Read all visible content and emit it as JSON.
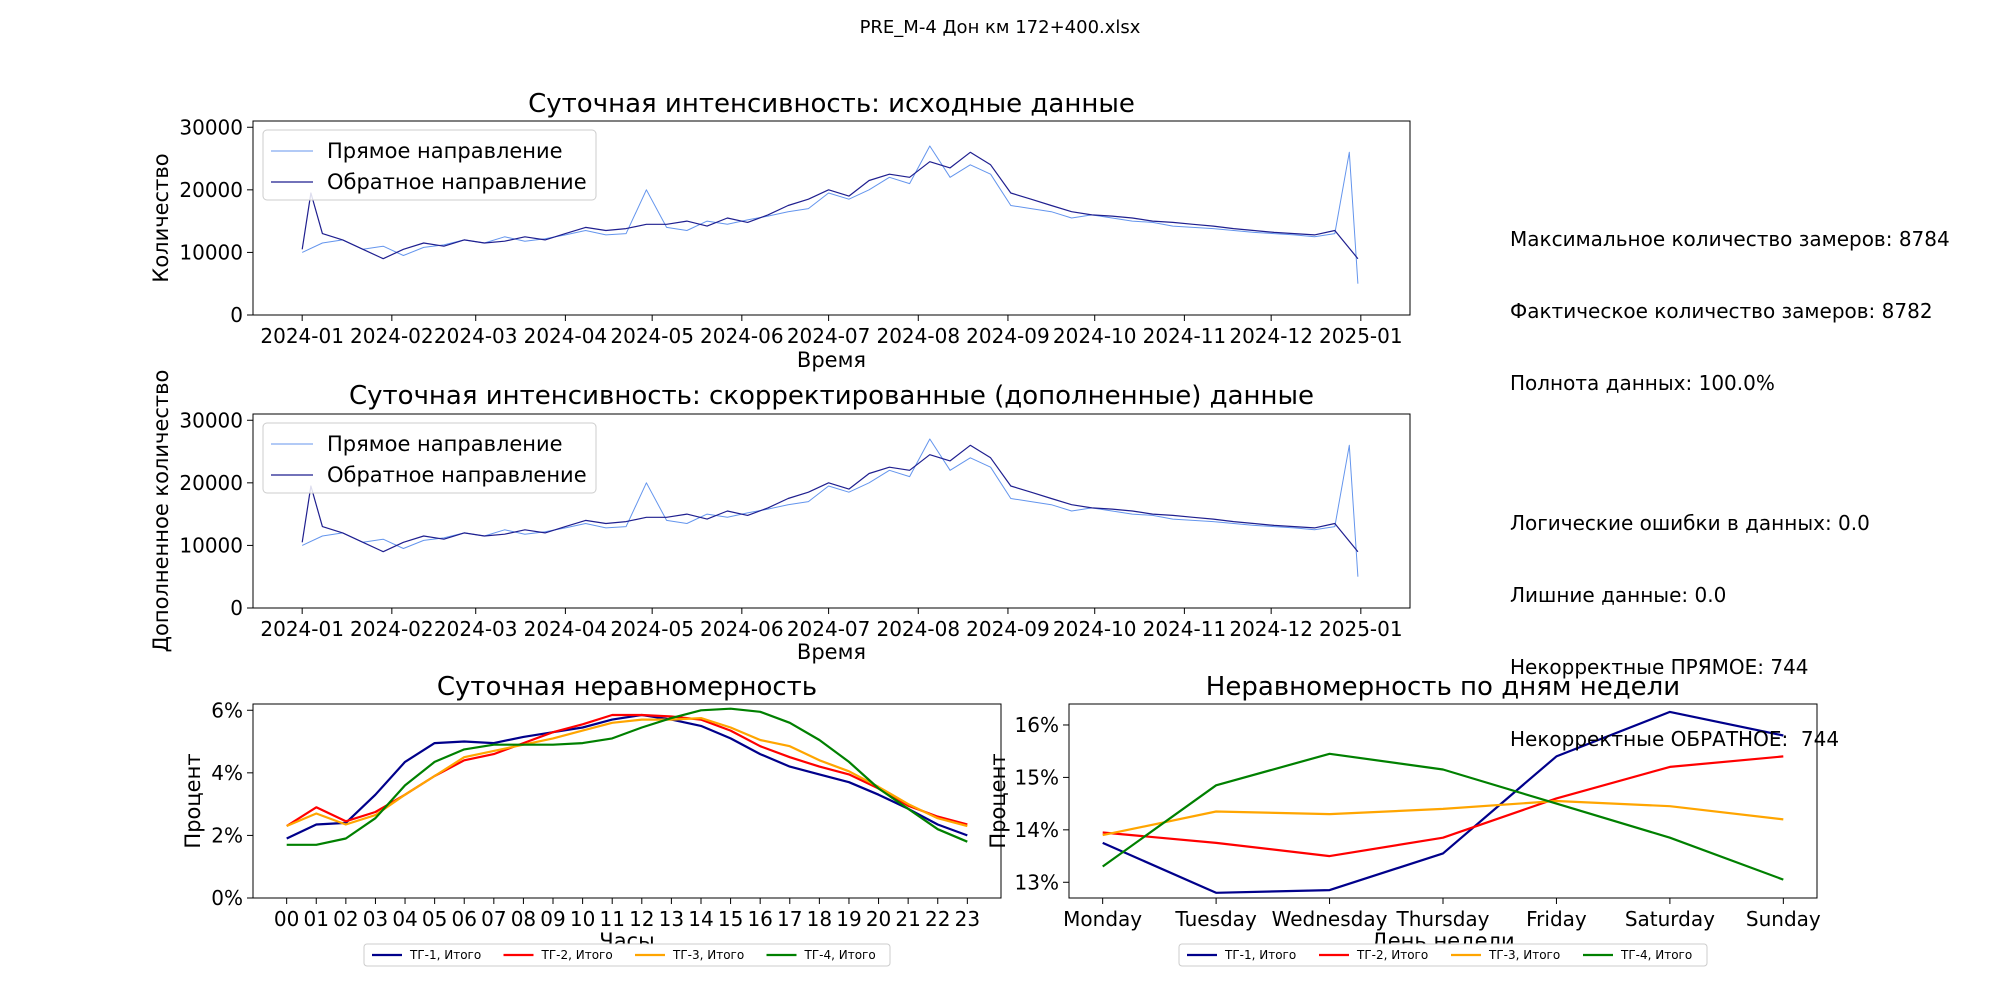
{
  "suptitle": "PRE_M-4 Дон км  172+400.xlsx",
  "stats": {
    "max_measurements": "Максимальное количество замеров: 8784",
    "actual_measurements": "Фактическое количество замеров: 8782",
    "completeness": "Полнота данных: 100.0%",
    "logical_errors": "Логические ошибки в данных: 0.0",
    "extra_data": "Лишние данные: 0.0",
    "incorrect_forward": "Некорректные ПРЯМОЕ: 744",
    "incorrect_backward": "Некорректные ОБРАТНОЕ:  744"
  },
  "chart_data": [
    {
      "type": "line",
      "title": "Суточная интенсивность: исходные данные",
      "xlabel": "Время",
      "ylabel": "Количество",
      "ylim": [
        0,
        31000
      ],
      "yticks": [
        "0",
        "10000",
        "20000",
        "30000"
      ],
      "xticks": [
        "2024-01",
        "2024-02",
        "2024-03",
        "2024-04",
        "2024-05",
        "2024-06",
        "2024-07",
        "2024-08",
        "2024-09",
        "2024-10",
        "2024-11",
        "2024-12",
        "2025-01"
      ],
      "legend_position": "upper-left",
      "series": [
        {
          "name": "Прямое направление",
          "color": "#6495ed",
          "x_dates": [
            "2024-01-01",
            "2024-01-08",
            "2024-01-15",
            "2024-01-22",
            "2024-01-29",
            "2024-02-05",
            "2024-02-12",
            "2024-02-19",
            "2024-02-26",
            "2024-03-04",
            "2024-03-11",
            "2024-03-18",
            "2024-03-25",
            "2024-04-01",
            "2024-04-08",
            "2024-04-15",
            "2024-04-22",
            "2024-04-29",
            "2024-05-06",
            "2024-05-13",
            "2024-05-20",
            "2024-05-27",
            "2024-06-03",
            "2024-06-10",
            "2024-06-17",
            "2024-06-24",
            "2024-07-01",
            "2024-07-08",
            "2024-07-15",
            "2024-07-22",
            "2024-07-29",
            "2024-08-05",
            "2024-08-12",
            "2024-08-19",
            "2024-08-26",
            "2024-09-02",
            "2024-09-09",
            "2024-09-16",
            "2024-09-23",
            "2024-09-30",
            "2024-10-07",
            "2024-10-14",
            "2024-10-21",
            "2024-10-28",
            "2024-11-04",
            "2024-11-11",
            "2024-11-18",
            "2024-11-25",
            "2024-12-02",
            "2024-12-09",
            "2024-12-16",
            "2024-12-23",
            "2024-12-28",
            "2024-12-31"
          ],
          "values": [
            10000,
            11500,
            12000,
            10500,
            11000,
            9500,
            10800,
            11200,
            12000,
            11500,
            12500,
            11800,
            12200,
            12800,
            13500,
            12800,
            13000,
            20000,
            14000,
            13500,
            15000,
            14500,
            15200,
            15800,
            16500,
            17000,
            19500,
            18500,
            20000,
            22000,
            21000,
            27000,
            22000,
            24000,
            22500,
            17500,
            17000,
            16500,
            15500,
            16000,
            15500,
            15000,
            14800,
            14200,
            14000,
            13800,
            13500,
            13200,
            13000,
            12800,
            12500,
            13000,
            26000,
            5000
          ]
        },
        {
          "name": "Обратное направление",
          "color": "#1f1f8f",
          "x_dates": [
            "2024-01-01",
            "2024-01-04",
            "2024-01-08",
            "2024-01-15",
            "2024-01-22",
            "2024-01-29",
            "2024-02-05",
            "2024-02-12",
            "2024-02-19",
            "2024-02-26",
            "2024-03-04",
            "2024-03-11",
            "2024-03-18",
            "2024-03-25",
            "2024-04-01",
            "2024-04-08",
            "2024-04-15",
            "2024-04-22",
            "2024-04-29",
            "2024-05-06",
            "2024-05-13",
            "2024-05-20",
            "2024-05-27",
            "2024-06-03",
            "2024-06-10",
            "2024-06-17",
            "2024-06-24",
            "2024-07-01",
            "2024-07-08",
            "2024-07-15",
            "2024-07-22",
            "2024-07-29",
            "2024-08-05",
            "2024-08-12",
            "2024-08-19",
            "2024-08-26",
            "2024-09-02",
            "2024-09-09",
            "2024-09-16",
            "2024-09-23",
            "2024-09-30",
            "2024-10-07",
            "2024-10-14",
            "2024-10-21",
            "2024-10-28",
            "2024-11-04",
            "2024-11-11",
            "2024-11-18",
            "2024-11-25",
            "2024-12-02",
            "2024-12-09",
            "2024-12-16",
            "2024-12-23",
            "2024-12-31"
          ],
          "values": [
            10500,
            19500,
            13000,
            12000,
            10500,
            9000,
            10500,
            11500,
            11000,
            12000,
            11500,
            11800,
            12500,
            12000,
            13000,
            14000,
            13500,
            13800,
            14500,
            14500,
            15000,
            14200,
            15500,
            14800,
            16000,
            17500,
            18500,
            20000,
            19000,
            21500,
            22500,
            22000,
            24500,
            23500,
            26000,
            24000,
            19500,
            18500,
            17500,
            16500,
            16000,
            15800,
            15500,
            15000,
            14800,
            14500,
            14200,
            13800,
            13500,
            13200,
            13000,
            12800,
            13500,
            9000
          ]
        }
      ]
    },
    {
      "type": "line",
      "title": "Суточная интенсивность: скорректированные (дополненные) данные",
      "xlabel": "Время",
      "ylabel": "Дополненное количество",
      "ylim": [
        0,
        31000
      ],
      "yticks": [
        "0",
        "10000",
        "20000",
        "30000"
      ],
      "xticks": [
        "2024-01",
        "2024-02",
        "2024-03",
        "2024-04",
        "2024-05",
        "2024-06",
        "2024-07",
        "2024-08",
        "2024-09",
        "2024-10",
        "2024-11",
        "2024-12",
        "2025-01"
      ],
      "legend_position": "upper-left",
      "series": [
        {
          "name": "Прямое направление",
          "color": "#6495ed",
          "x_dates": [
            "2024-01-01",
            "2024-01-08",
            "2024-01-15",
            "2024-01-22",
            "2024-01-29",
            "2024-02-05",
            "2024-02-12",
            "2024-02-19",
            "2024-02-26",
            "2024-03-04",
            "2024-03-11",
            "2024-03-18",
            "2024-03-25",
            "2024-04-01",
            "2024-04-08",
            "2024-04-15",
            "2024-04-22",
            "2024-04-29",
            "2024-05-06",
            "2024-05-13",
            "2024-05-20",
            "2024-05-27",
            "2024-06-03",
            "2024-06-10",
            "2024-06-17",
            "2024-06-24",
            "2024-07-01",
            "2024-07-08",
            "2024-07-15",
            "2024-07-22",
            "2024-07-29",
            "2024-08-05",
            "2024-08-12",
            "2024-08-19",
            "2024-08-26",
            "2024-09-02",
            "2024-09-09",
            "2024-09-16",
            "2024-09-23",
            "2024-09-30",
            "2024-10-07",
            "2024-10-14",
            "2024-10-21",
            "2024-10-28",
            "2024-11-04",
            "2024-11-11",
            "2024-11-18",
            "2024-11-25",
            "2024-12-02",
            "2024-12-09",
            "2024-12-16",
            "2024-12-23",
            "2024-12-28",
            "2024-12-31"
          ],
          "values": [
            10000,
            11500,
            12000,
            10500,
            11000,
            9500,
            10800,
            11200,
            12000,
            11500,
            12500,
            11800,
            12200,
            12800,
            13500,
            12800,
            13000,
            20000,
            14000,
            13500,
            15000,
            14500,
            15200,
            15800,
            16500,
            17000,
            19500,
            18500,
            20000,
            22000,
            21000,
            27000,
            22000,
            24000,
            22500,
            17500,
            17000,
            16500,
            15500,
            16000,
            15500,
            15000,
            14800,
            14200,
            14000,
            13800,
            13500,
            13200,
            13000,
            12800,
            12500,
            13000,
            26000,
            5000
          ]
        },
        {
          "name": "Обратное направление",
          "color": "#1f1f8f",
          "x_dates": [
            "2024-01-01",
            "2024-01-04",
            "2024-01-08",
            "2024-01-15",
            "2024-01-22",
            "2024-01-29",
            "2024-02-05",
            "2024-02-12",
            "2024-02-19",
            "2024-02-26",
            "2024-03-04",
            "2024-03-11",
            "2024-03-18",
            "2024-03-25",
            "2024-04-01",
            "2024-04-08",
            "2024-04-15",
            "2024-04-22",
            "2024-04-29",
            "2024-05-06",
            "2024-05-13",
            "2024-05-20",
            "2024-05-27",
            "2024-06-03",
            "2024-06-10",
            "2024-06-17",
            "2024-06-24",
            "2024-07-01",
            "2024-07-08",
            "2024-07-15",
            "2024-07-22",
            "2024-07-29",
            "2024-08-05",
            "2024-08-12",
            "2024-08-19",
            "2024-08-26",
            "2024-09-02",
            "2024-09-09",
            "2024-09-16",
            "2024-09-23",
            "2024-09-30",
            "2024-10-07",
            "2024-10-14",
            "2024-10-21",
            "2024-10-28",
            "2024-11-04",
            "2024-11-11",
            "2024-11-18",
            "2024-11-25",
            "2024-12-02",
            "2024-12-09",
            "2024-12-16",
            "2024-12-23",
            "2024-12-31"
          ],
          "values": [
            10500,
            19500,
            13000,
            12000,
            10500,
            9000,
            10500,
            11500,
            11000,
            12000,
            11500,
            11800,
            12500,
            12000,
            13000,
            14000,
            13500,
            13800,
            14500,
            14500,
            15000,
            14200,
            15500,
            14800,
            16000,
            17500,
            18500,
            20000,
            19000,
            21500,
            22500,
            22000,
            24500,
            23500,
            26000,
            24000,
            19500,
            18500,
            17500,
            16500,
            16000,
            15800,
            15500,
            15000,
            14800,
            14500,
            14200,
            13800,
            13500,
            13200,
            13000,
            12800,
            13500,
            9000
          ]
        }
      ]
    },
    {
      "type": "line",
      "title": "Суточная неравномерность",
      "xlabel": "Часы",
      "ylabel": "Процент",
      "ylim": [
        0,
        6.2
      ],
      "yticks": [
        "0%",
        "2%",
        "4%",
        "6%"
      ],
      "categories": [
        "00",
        "01",
        "02",
        "03",
        "04",
        "05",
        "06",
        "07",
        "08",
        "09",
        "10",
        "11",
        "12",
        "13",
        "14",
        "15",
        "16",
        "17",
        "18",
        "19",
        "20",
        "21",
        "22",
        "23"
      ],
      "legend_position": "below",
      "series": [
        {
          "name": "ТГ-1, Итого",
          "color": "#00008b",
          "values": [
            1.9,
            2.35,
            2.4,
            3.3,
            4.35,
            4.95,
            5.0,
            4.95,
            5.15,
            5.3,
            5.45,
            5.7,
            5.85,
            5.7,
            5.5,
            5.1,
            4.6,
            4.2,
            3.95,
            3.7,
            3.3,
            2.85,
            2.35,
            2.0
          ]
        },
        {
          "name": "ТГ-2, Итого",
          "color": "#ff0000",
          "values": [
            2.3,
            2.9,
            2.45,
            2.75,
            3.3,
            3.9,
            4.4,
            4.6,
            4.95,
            5.3,
            5.55,
            5.85,
            5.85,
            5.8,
            5.7,
            5.35,
            4.85,
            4.5,
            4.2,
            3.95,
            3.5,
            2.95,
            2.6,
            2.35
          ]
        },
        {
          "name": "ТГ-3, Итого",
          "color": "#ffa500",
          "values": [
            2.3,
            2.7,
            2.35,
            2.65,
            3.3,
            3.9,
            4.5,
            4.7,
            4.9,
            5.1,
            5.35,
            5.6,
            5.7,
            5.7,
            5.75,
            5.45,
            5.05,
            4.85,
            4.4,
            4.05,
            3.55,
            3.0,
            2.55,
            2.3
          ]
        },
        {
          "name": "ТГ-4, Итого",
          "color": "#008000",
          "values": [
            1.7,
            1.7,
            1.9,
            2.55,
            3.6,
            4.35,
            4.75,
            4.9,
            4.9,
            4.9,
            4.95,
            5.1,
            5.45,
            5.75,
            6.0,
            6.05,
            5.95,
            5.6,
            5.05,
            4.35,
            3.5,
            2.85,
            2.2,
            1.8
          ]
        }
      ]
    },
    {
      "type": "line",
      "title": "Неравномерность по дням недели",
      "xlabel": "День недели",
      "ylabel": "Процент",
      "ylim": [
        12.7,
        16.4
      ],
      "yticks": [
        "13%",
        "14%",
        "15%",
        "16%"
      ],
      "categories": [
        "Monday",
        "Tuesday",
        "Wednesday",
        "Thursday",
        "Friday",
        "Saturday",
        "Sunday"
      ],
      "legend_position": "below",
      "series": [
        {
          "name": "ТГ-1, Итого",
          "color": "#00008b",
          "values": [
            13.75,
            12.8,
            12.85,
            13.55,
            15.4,
            16.25,
            15.8
          ]
        },
        {
          "name": "ТГ-2, Итого",
          "color": "#ff0000",
          "values": [
            13.95,
            13.75,
            13.5,
            13.85,
            14.6,
            15.2,
            15.4
          ]
        },
        {
          "name": "ТГ-3, Итого",
          "color": "#ffa500",
          "values": [
            13.9,
            14.35,
            14.3,
            14.4,
            14.55,
            14.45,
            14.2
          ]
        },
        {
          "name": "ТГ-4, Итого",
          "color": "#008000",
          "values": [
            13.3,
            14.85,
            15.45,
            15.15,
            14.5,
            13.85,
            13.05
          ]
        }
      ]
    }
  ]
}
